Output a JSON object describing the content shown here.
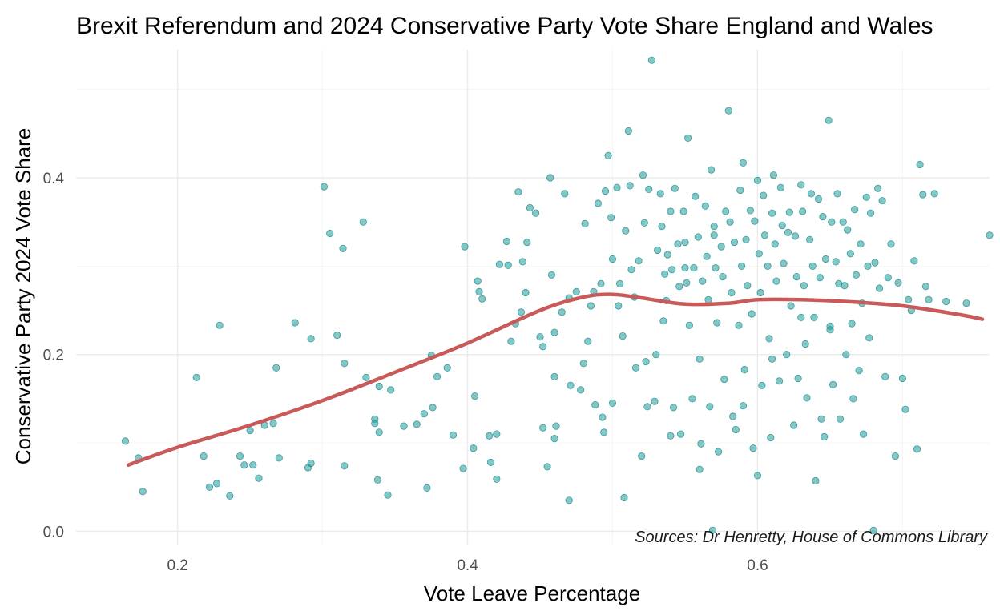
{
  "chart_data": {
    "type": "scatter",
    "title": "Brexit Referendum and 2024 Conservative Party Vote Share England and Wales",
    "xlabel": "Vote Leave Percentage",
    "ylabel": "Conservative Party 2024 Vote Share",
    "caption": "Sources: Dr Henretty, House of Commons Library",
    "xlim": [
      0.13,
      0.76
    ],
    "ylim": [
      -0.015,
      0.545
    ],
    "x_ticks": [
      0.2,
      0.4,
      0.6
    ],
    "x_tick_labels": [
      "0.2",
      "0.4",
      "0.6"
    ],
    "y_ticks": [
      0.0,
      0.2,
      0.4
    ],
    "y_tick_labels": [
      "0.0",
      "0.2",
      "0.4"
    ],
    "grid": true,
    "legend": "none",
    "point_color": "#1a9b9b",
    "trend_color": "#c85a5a",
    "trend_line": {
      "x": [
        0.166,
        0.2,
        0.25,
        0.3,
        0.35,
        0.4,
        0.45,
        0.48,
        0.5,
        0.52,
        0.55,
        0.58,
        0.6,
        0.63,
        0.66,
        0.7,
        0.74,
        0.755
      ],
      "y": [
        0.075,
        0.095,
        0.12,
        0.148,
        0.18,
        0.213,
        0.25,
        0.265,
        0.268,
        0.264,
        0.257,
        0.258,
        0.262,
        0.262,
        0.26,
        0.255,
        0.245,
        0.24
      ]
    },
    "points": [
      [
        0.164,
        0.102
      ],
      [
        0.173,
        0.083
      ],
      [
        0.176,
        0.045
      ],
      [
        0.213,
        0.174
      ],
      [
        0.218,
        0.085
      ],
      [
        0.222,
        0.05
      ],
      [
        0.227,
        0.054
      ],
      [
        0.229,
        0.233
      ],
      [
        0.236,
        0.04
      ],
      [
        0.243,
        0.085
      ],
      [
        0.246,
        0.075
      ],
      [
        0.25,
        0.114
      ],
      [
        0.252,
        0.075
      ],
      [
        0.256,
        0.06
      ],
      [
        0.26,
        0.12
      ],
      [
        0.266,
        0.122
      ],
      [
        0.268,
        0.185
      ],
      [
        0.27,
        0.083
      ],
      [
        0.281,
        0.236
      ],
      [
        0.29,
        0.072
      ],
      [
        0.292,
        0.077
      ],
      [
        0.292,
        0.218
      ],
      [
        0.301,
        0.39
      ],
      [
        0.305,
        0.337
      ],
      [
        0.31,
        0.222
      ],
      [
        0.314,
        0.32
      ],
      [
        0.315,
        0.074
      ],
      [
        0.315,
        0.19
      ],
      [
        0.328,
        0.35
      ],
      [
        0.33,
        0.174
      ],
      [
        0.336,
        0.127
      ],
      [
        0.336,
        0.122
      ],
      [
        0.338,
        0.058
      ],
      [
        0.339,
        0.164
      ],
      [
        0.339,
        0.112
      ],
      [
        0.345,
        0.041
      ],
      [
        0.347,
        0.16
      ],
      [
        0.356,
        0.119
      ],
      [
        0.365,
        0.121
      ],
      [
        0.37,
        0.133
      ],
      [
        0.372,
        0.049
      ],
      [
        0.375,
        0.199
      ],
      [
        0.376,
        0.14
      ],
      [
        0.379,
        0.175
      ],
      [
        0.386,
        0.185
      ],
      [
        0.39,
        0.109
      ],
      [
        0.397,
        0.071
      ],
      [
        0.398,
        0.322
      ],
      [
        0.405,
        0.153
      ],
      [
        0.404,
        0.094
      ],
      [
        0.407,
        0.283
      ],
      [
        0.408,
        0.271
      ],
      [
        0.41,
        0.263
      ],
      [
        0.415,
        0.108
      ],
      [
        0.416,
        0.078
      ],
      [
        0.42,
        0.059
      ],
      [
        0.422,
        0.302
      ],
      [
        0.427,
        0.328
      ],
      [
        0.428,
        0.301
      ],
      [
        0.433,
        0.235
      ],
      [
        0.435,
        0.384
      ],
      [
        0.437,
        0.248
      ],
      [
        0.438,
        0.305
      ],
      [
        0.441,
        0.327
      ],
      [
        0.443,
        0.366
      ],
      [
        0.447,
        0.36
      ],
      [
        0.45,
        0.22
      ],
      [
        0.452,
        0.209
      ],
      [
        0.452,
        0.117
      ],
      [
        0.455,
        0.073
      ],
      [
        0.457,
        0.4
      ],
      [
        0.458,
        0.29
      ],
      [
        0.46,
        0.105
      ],
      [
        0.461,
        0.119
      ],
      [
        0.465,
        0.248
      ],
      [
        0.467,
        0.382
      ],
      [
        0.47,
        0.264
      ],
      [
        0.47,
        0.035
      ],
      [
        0.471,
        0.165
      ],
      [
        0.475,
        0.271
      ],
      [
        0.478,
        0.16
      ],
      [
        0.481,
        0.348
      ],
      [
        0.483,
        0.215
      ],
      [
        0.485,
        0.255
      ],
      [
        0.487,
        0.271
      ],
      [
        0.488,
        0.143
      ],
      [
        0.49,
        0.371
      ],
      [
        0.492,
        0.28
      ],
      [
        0.493,
        0.129
      ],
      [
        0.494,
        0.112
      ],
      [
        0.495,
        0.385
      ],
      [
        0.497,
        0.425
      ],
      [
        0.499,
        0.355
      ],
      [
        0.5,
        0.308
      ],
      [
        0.503,
        0.389
      ],
      [
        0.504,
        0.255
      ],
      [
        0.505,
        0.28
      ],
      [
        0.507,
        0.221
      ],
      [
        0.508,
        0.038
      ],
      [
        0.509,
        0.34
      ],
      [
        0.511,
        0.453
      ],
      [
        0.512,
        0.391
      ],
      [
        0.513,
        0.296
      ],
      [
        0.515,
        0.265
      ],
      [
        0.516,
        0.185
      ],
      [
        0.518,
        0.306
      ],
      [
        0.521,
        0.403
      ],
      [
        0.522,
        0.349
      ],
      [
        0.523,
        0.192
      ],
      [
        0.524,
        0.141
      ],
      [
        0.525,
        0.387
      ],
      [
        0.527,
        0.533
      ],
      [
        0.529,
        0.147
      ],
      [
        0.53,
        0.2
      ],
      [
        0.531,
        0.318
      ],
      [
        0.533,
        0.382
      ],
      [
        0.534,
        0.345
      ],
      [
        0.535,
        0.238
      ],
      [
        0.536,
        0.291
      ],
      [
        0.537,
        0.261
      ],
      [
        0.538,
        0.313
      ],
      [
        0.54,
        0.362
      ],
      [
        0.541,
        0.296
      ],
      [
        0.542,
        0.14
      ],
      [
        0.543,
        0.388
      ],
      [
        0.545,
        0.325
      ],
      [
        0.546,
        0.277
      ],
      [
        0.547,
        0.11
      ],
      [
        0.549,
        0.362
      ],
      [
        0.55,
        0.327
      ],
      [
        0.551,
        0.281
      ],
      [
        0.552,
        0.445
      ],
      [
        0.553,
        0.233
      ],
      [
        0.555,
        0.15
      ],
      [
        0.556,
        0.298
      ],
      [
        0.557,
        0.379
      ],
      [
        0.559,
        0.333
      ],
      [
        0.56,
        0.195
      ],
      [
        0.561,
        0.099
      ],
      [
        0.562,
        0.283
      ],
      [
        0.564,
        0.368
      ],
      [
        0.565,
        0.311
      ],
      [
        0.566,
        0.262
      ],
      [
        0.567,
        0.141
      ],
      [
        0.568,
        0.409
      ],
      [
        0.57,
        0.335
      ],
      [
        0.571,
        0.298
      ],
      [
        0.572,
        0.236
      ],
      [
        0.573,
        0.09
      ],
      [
        0.575,
        0.322
      ],
      [
        0.576,
        0.288
      ],
      [
        0.577,
        0.172
      ],
      [
        0.578,
        0.362
      ],
      [
        0.58,
        0.476
      ],
      [
        0.581,
        0.35
      ],
      [
        0.582,
        0.27
      ],
      [
        0.583,
        0.13
      ],
      [
        0.584,
        0.327
      ],
      [
        0.585,
        0.115
      ],
      [
        0.587,
        0.233
      ],
      [
        0.588,
        0.386
      ],
      [
        0.589,
        0.3
      ],
      [
        0.59,
        0.417
      ],
      [
        0.591,
        0.183
      ],
      [
        0.592,
        0.33
      ],
      [
        0.593,
        0.278
      ],
      [
        0.595,
        0.363
      ],
      [
        0.596,
        0.246
      ],
      [
        0.597,
        0.094
      ],
      [
        0.598,
        0.351
      ],
      [
        0.6,
        0.397
      ],
      [
        0.601,
        0.314
      ],
      [
        0.602,
        0.27
      ],
      [
        0.603,
        0.165
      ],
      [
        0.604,
        0.38
      ],
      [
        0.605,
        0.335
      ],
      [
        0.607,
        0.3
      ],
      [
        0.608,
        0.218
      ],
      [
        0.609,
        0.106
      ],
      [
        0.61,
        0.36
      ],
      [
        0.611,
        0.403
      ],
      [
        0.612,
        0.325
      ],
      [
        0.613,
        0.283
      ],
      [
        0.615,
        0.17
      ],
      [
        0.616,
        0.389
      ],
      [
        0.617,
        0.346
      ],
      [
        0.618,
        0.303
      ],
      [
        0.62,
        0.2
      ],
      [
        0.621,
        0.338
      ],
      [
        0.622,
        0.361
      ],
      [
        0.623,
        0.255
      ],
      [
        0.625,
        0.12
      ],
      [
        0.626,
        0.334
      ],
      [
        0.627,
        0.288
      ],
      [
        0.628,
        0.173
      ],
      [
        0.63,
        0.392
      ],
      [
        0.631,
        0.362
      ],
      [
        0.632,
        0.278
      ],
      [
        0.633,
        0.212
      ],
      [
        0.634,
        0.151
      ],
      [
        0.636,
        0.33
      ],
      [
        0.637,
        0.382
      ],
      [
        0.638,
        0.3
      ],
      [
        0.639,
        0.242
      ],
      [
        0.64,
        0.057
      ],
      [
        0.642,
        0.376
      ],
      [
        0.643,
        0.287
      ],
      [
        0.644,
        0.127
      ],
      [
        0.645,
        0.356
      ],
      [
        0.646,
        0.107
      ],
      [
        0.647,
        0.308
      ],
      [
        0.649,
        0.465
      ],
      [
        0.65,
        0.232
      ],
      [
        0.651,
        0.35
      ],
      [
        0.652,
        0.166
      ],
      [
        0.654,
        0.305
      ],
      [
        0.655,
        0.382
      ],
      [
        0.656,
        0.28
      ],
      [
        0.657,
        0.127
      ],
      [
        0.659,
        0.35
      ],
      [
        0.66,
        0.278
      ],
      [
        0.661,
        0.2
      ],
      [
        0.662,
        0.341
      ],
      [
        0.664,
        0.314
      ],
      [
        0.665,
        0.235
      ],
      [
        0.666,
        0.15
      ],
      [
        0.667,
        0.364
      ],
      [
        0.668,
        0.29
      ],
      [
        0.67,
        0.182
      ],
      [
        0.671,
        0.325
      ],
      [
        0.672,
        0.258
      ],
      [
        0.673,
        0.11
      ],
      [
        0.675,
        0.378
      ],
      [
        0.676,
        0.3
      ],
      [
        0.677,
        0.219
      ],
      [
        0.678,
        0.36
      ],
      [
        0.68,
        0.001
      ],
      [
        0.681,
        0.304
      ],
      [
        0.683,
        0.388
      ],
      [
        0.684,
        0.275
      ],
      [
        0.686,
        0.374
      ],
      [
        0.688,
        0.175
      ],
      [
        0.69,
        0.287
      ],
      [
        0.692,
        0.325
      ],
      [
        0.695,
        0.085
      ],
      [
        0.697,
        0.281
      ],
      [
        0.7,
        0.173
      ],
      [
        0.702,
        0.138
      ],
      [
        0.704,
        0.262
      ],
      [
        0.706,
        0.25
      ],
      [
        0.708,
        0.306
      ],
      [
        0.71,
        0.093
      ],
      [
        0.712,
        0.415
      ],
      [
        0.714,
        0.381
      ],
      [
        0.716,
        0.277
      ],
      [
        0.718,
        0.262
      ],
      [
        0.722,
        0.382
      ],
      [
        0.73,
        0.26
      ],
      [
        0.744,
        0.258
      ],
      [
        0.76,
        0.335
      ],
      [
        0.569,
        0.001
      ],
      [
        0.6,
        0.063
      ],
      [
        0.59,
        0.142
      ],
      [
        0.56,
        0.07
      ],
      [
        0.54,
        0.108
      ],
      [
        0.52,
        0.085
      ],
      [
        0.5,
        0.145
      ],
      [
        0.48,
        0.19
      ],
      [
        0.46,
        0.225
      ],
      [
        0.44,
        0.27
      ],
      [
        0.42,
        0.11
      ],
      [
        0.43,
        0.215
      ],
      [
        0.46,
        0.175
      ],
      [
        0.57,
        0.345
      ],
      [
        0.55,
        0.298
      ],
      [
        0.63,
        0.242
      ],
      [
        0.65,
        0.228
      ],
      [
        0.61,
        0.195
      ]
    ]
  }
}
